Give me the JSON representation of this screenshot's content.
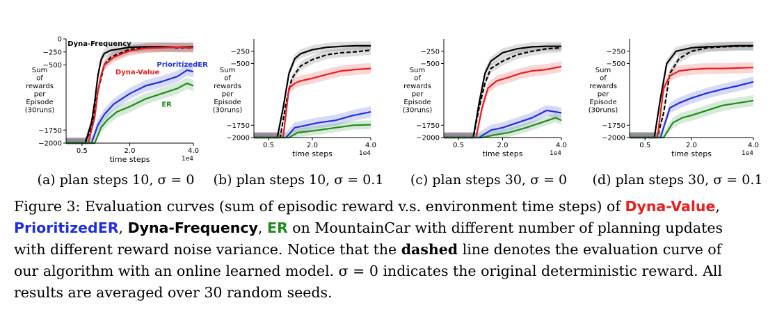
{
  "chart_data": [
    {
      "type": "line",
      "subcaption": "(a) plan steps 10, σ = 0",
      "xlabel": "time steps",
      "x_exponent": "1e4",
      "ylabel": [
        "Sum",
        "of",
        "rewards",
        "per",
        "Episode",
        "(30runs)"
      ],
      "xlim": [
        0,
        4.0
      ],
      "ylim": [
        -2000,
        0
      ],
      "xticks": [
        {
          "v": 0.5,
          "label": "0.5"
        },
        {
          "v": 2.0,
          "label": "2.0"
        },
        {
          "v": 4.0,
          "label": "4.0"
        }
      ],
      "yticks": [
        {
          "v": 0,
          "label": "0"
        },
        {
          "v": -250,
          "label": "−250"
        },
        {
          "v": -500,
          "label": "−500"
        },
        {
          "v": -1750,
          "label": "−1750"
        },
        {
          "v": -2000,
          "label": "−2000"
        }
      ],
      "series": [
        {
          "name": "Dyna-Frequency",
          "color": "#000000",
          "dashed": false,
          "band": 90,
          "x": [
            0,
            0.6,
            0.8,
            0.9,
            1.0,
            1.1,
            1.2,
            1.4,
            1.6,
            1.8,
            2.0,
            2.5,
            3.0,
            3.5,
            4.0
          ],
          "y": [
            -2000,
            -2000,
            -1600,
            -1200,
            -700,
            -400,
            -280,
            -220,
            -200,
            -180,
            -160,
            -150,
            -150,
            -160,
            -150
          ]
        },
        {
          "name": "",
          "color": "#000000",
          "dashed": true,
          "band": 90,
          "x": [
            0,
            0.6,
            0.8,
            1.0,
            1.2,
            1.4,
            1.6,
            1.8,
            2.0,
            2.5,
            3.0,
            3.5,
            4.0
          ],
          "y": [
            -2000,
            -2000,
            -1700,
            -1000,
            -500,
            -350,
            -300,
            -250,
            -200,
            -170,
            -160,
            -170,
            -170
          ]
        },
        {
          "name": "Dyna-Value",
          "color": "#ee1c1c",
          "dashed": false,
          "band": 90,
          "x": [
            0,
            0.7,
            0.9,
            1.0,
            1.1,
            1.2,
            1.3,
            1.5,
            1.7,
            2.0,
            2.5,
            3.0,
            3.5,
            4.0
          ],
          "y": [
            -2000,
            -2000,
            -1500,
            -1000,
            -700,
            -500,
            -450,
            -350,
            -300,
            -230,
            -180,
            -170,
            -160,
            -170
          ]
        },
        {
          "name": "PrioritizedER",
          "color": "#1f2fe0",
          "dashed": false,
          "band": 110,
          "x": [
            0,
            0.8,
            1.0,
            1.2,
            1.5,
            2.0,
            2.5,
            3.0,
            3.5,
            3.8,
            4.0
          ],
          "y": [
            -2000,
            -2000,
            -1650,
            -1450,
            -1250,
            -1050,
            -900,
            -820,
            -720,
            -600,
            -630
          ]
        },
        {
          "name": "ER",
          "color": "#1f8a1f",
          "dashed": false,
          "band": 110,
          "x": [
            0,
            0.9,
            1.1,
            1.3,
            1.6,
            2.0,
            2.5,
            3.0,
            3.5,
            3.8,
            4.0
          ],
          "y": [
            -2000,
            -2000,
            -1700,
            -1550,
            -1400,
            -1300,
            -1150,
            -1050,
            -950,
            -850,
            -900
          ]
        }
      ],
      "annotations": [
        {
          "text": "Dyna-Frequency",
          "color": "#000000",
          "x": 0.05,
          "y": -130
        },
        {
          "text": "PrioritizedER",
          "color": "#1f2fe0",
          "x": 2.85,
          "y": -530
        },
        {
          "text": "Dyna-Value",
          "color": "#ee1c1c",
          "x": 1.55,
          "y": -680
        },
        {
          "text": "ER",
          "color": "#1f8a1f",
          "x": 3.0,
          "y": -1300
        }
      ]
    },
    {
      "type": "line",
      "subcaption": "(b) plan steps 10, σ = 0.1",
      "xlabel": "time steps",
      "x_exponent": "1e4",
      "ylabel": [
        "Sum",
        "of",
        "rewards",
        "per",
        "Episode",
        "(30runs)"
      ],
      "xlim": [
        0,
        4.0
      ],
      "ylim": [
        -2000,
        0
      ],
      "xticks": [
        {
          "v": 0.5,
          "label": "0.5"
        },
        {
          "v": 2.0,
          "label": "2.0"
        },
        {
          "v": 4.0,
          "label": "4.0"
        }
      ],
      "yticks": [
        {
          "v": -250,
          "label": "−250"
        },
        {
          "v": -500,
          "label": "−500"
        },
        {
          "v": -1750,
          "label": "−1750"
        },
        {
          "v": -2000,
          "label": "−2000"
        }
      ],
      "series": [
        {
          "name": "Dyna-Frequency",
          "color": "#000000",
          "dashed": false,
          "band": 90,
          "x": [
            0,
            0.8,
            1.0,
            1.2,
            1.4,
            1.6,
            2.0,
            2.5,
            3.0,
            3.5,
            4.0
          ],
          "y": [
            -2000,
            -2000,
            -1400,
            -700,
            -400,
            -300,
            -220,
            -170,
            -150,
            -140,
            -140
          ]
        },
        {
          "name": "",
          "color": "#000000",
          "dashed": true,
          "band": 90,
          "x": [
            0,
            0.9,
            1.1,
            1.3,
            1.6,
            2.0,
            2.5,
            3.0,
            3.5,
            4.0
          ],
          "y": [
            -2000,
            -2000,
            -1300,
            -800,
            -550,
            -420,
            -320,
            -280,
            -260,
            -230
          ]
        },
        {
          "name": "Dyna-Value",
          "color": "#ee1c1c",
          "dashed": false,
          "band": 110,
          "x": [
            0,
            1.0,
            1.2,
            1.4,
            1.6,
            2.0,
            2.5,
            3.0,
            3.5,
            4.0
          ],
          "y": [
            -2000,
            -2000,
            -1000,
            -900,
            -850,
            -800,
            -720,
            -650,
            -620,
            -600
          ]
        },
        {
          "name": "PrioritizedER",
          "color": "#1f2fe0",
          "dashed": false,
          "band": 110,
          "x": [
            0,
            1.1,
            1.4,
            1.8,
            2.2,
            2.8,
            3.4,
            4.0
          ],
          "y": [
            -2000,
            -2000,
            -1800,
            -1750,
            -1700,
            -1650,
            -1550,
            -1480
          ]
        },
        {
          "name": "ER",
          "color": "#1f8a1f",
          "dashed": false,
          "band": 90,
          "x": [
            0,
            1.2,
            1.5,
            1.8,
            2.2,
            2.8,
            3.4,
            4.0
          ],
          "y": [
            -2000,
            -2000,
            -1900,
            -1880,
            -1850,
            -1800,
            -1750,
            -1740
          ]
        }
      ],
      "annotations": []
    },
    {
      "type": "line",
      "subcaption": "(c) plan steps 30, σ = 0",
      "xlabel": "time steps",
      "x_exponent": "1e4",
      "ylabel": [
        "Sum",
        "of",
        "rewards",
        "per",
        "Episode",
        "(30runs)"
      ],
      "xlim": [
        0,
        4.0
      ],
      "ylim": [
        -2000,
        0
      ],
      "xticks": [
        {
          "v": 0.5,
          "label": "0.5"
        },
        {
          "v": 2.0,
          "label": "2.0"
        },
        {
          "v": 4.0,
          "label": "4.0"
        }
      ],
      "yticks": [
        {
          "v": -250,
          "label": "−250"
        },
        {
          "v": -500,
          "label": "−500"
        },
        {
          "v": -1750,
          "label": "−1750"
        },
        {
          "v": -2000,
          "label": "−2000"
        }
      ],
      "series": [
        {
          "name": "Dyna-Frequency",
          "color": "#000000",
          "dashed": false,
          "band": 90,
          "x": [
            0,
            1.0,
            1.2,
            1.4,
            1.6,
            2.0,
            2.5,
            3.0,
            3.5,
            4.0
          ],
          "y": [
            -2000,
            -2000,
            -1300,
            -700,
            -450,
            -280,
            -200,
            -160,
            -150,
            -150
          ]
        },
        {
          "name": "",
          "color": "#000000",
          "dashed": true,
          "band": 90,
          "x": [
            0,
            1.0,
            1.2,
            1.4,
            1.6,
            2.0,
            2.5,
            3.0,
            3.5,
            4.0
          ],
          "y": [
            -2000,
            -2000,
            -1400,
            -900,
            -600,
            -450,
            -320,
            -250,
            -200,
            -180
          ]
        },
        {
          "name": "Dyna-Value",
          "color": "#ee1c1c",
          "dashed": false,
          "band": 110,
          "x": [
            0,
            1.1,
            1.3,
            1.5,
            1.8,
            2.2,
            2.6,
            3.0,
            3.5,
            4.0
          ],
          "y": [
            -2000,
            -2000,
            -1400,
            -1000,
            -850,
            -780,
            -700,
            -650,
            -620,
            -560
          ]
        },
        {
          "name": "PrioritizedER",
          "color": "#1f2fe0",
          "dashed": false,
          "band": 110,
          "x": [
            0,
            1.2,
            1.6,
            2.0,
            2.5,
            3.0,
            3.5,
            4.0
          ],
          "y": [
            -2000,
            -2000,
            -1850,
            -1800,
            -1700,
            -1600,
            -1450,
            -1500
          ]
        },
        {
          "name": "ER",
          "color": "#1f8a1f",
          "dashed": false,
          "band": 90,
          "x": [
            0,
            1.3,
            1.7,
            2.2,
            2.8,
            3.3,
            3.8,
            4.0
          ],
          "y": [
            -2000,
            -2000,
            -1950,
            -1900,
            -1800,
            -1700,
            -1600,
            -1650
          ]
        }
      ],
      "annotations": []
    },
    {
      "type": "line",
      "subcaption": "(d) plan steps 30, σ = 0.1",
      "xlabel": "time steps",
      "x_exponent": "1e4",
      "ylabel": [
        "Sum",
        "of",
        "rewards",
        "per",
        "Episode",
        "(30runs)"
      ],
      "xlim": [
        0,
        4.0
      ],
      "ylim": [
        -2000,
        0
      ],
      "xticks": [
        {
          "v": 0.5,
          "label": "0.5"
        },
        {
          "v": 2.0,
          "label": "2.0"
        },
        {
          "v": 4.0,
          "label": "4.0"
        }
      ],
      "yticks": [
        {
          "v": -250,
          "label": "−250"
        },
        {
          "v": -500,
          "label": "−500"
        },
        {
          "v": -1750,
          "label": "−1750"
        },
        {
          "v": -2000,
          "label": "−2000"
        }
      ],
      "series": [
        {
          "name": "Dyna-Frequency",
          "color": "#000000",
          "dashed": false,
          "band": 90,
          "x": [
            0,
            0.8,
            1.0,
            1.2,
            1.5,
            2.0,
            2.5,
            3.0,
            3.5,
            4.0
          ],
          "y": [
            -2000,
            -2000,
            -1200,
            -500,
            -250,
            -180,
            -160,
            -150,
            -140,
            -140
          ]
        },
        {
          "name": "",
          "color": "#000000",
          "dashed": true,
          "band": 90,
          "x": [
            0,
            0.9,
            1.1,
            1.3,
            1.6,
            2.0,
            2.5,
            3.0,
            3.5,
            4.0
          ],
          "y": [
            -2000,
            -2000,
            -1500,
            -700,
            -400,
            -250,
            -180,
            -160,
            -150,
            -150
          ]
        },
        {
          "name": "Dyna-Value",
          "color": "#ee1c1c",
          "dashed": false,
          "band": 110,
          "x": [
            0,
            0.9,
            1.1,
            1.3,
            1.6,
            2.0,
            2.5,
            3.0,
            3.5,
            4.0
          ],
          "y": [
            -2000,
            -2000,
            -1000,
            -750,
            -650,
            -620,
            -600,
            -600,
            -590,
            -580
          ]
        },
        {
          "name": "PrioritizedER",
          "color": "#1f2fe0",
          "dashed": false,
          "band": 110,
          "x": [
            0,
            1.0,
            1.3,
            1.6,
            2.0,
            2.5,
            3.0,
            3.5,
            4.0
          ],
          "y": [
            -2000,
            -2000,
            -1400,
            -1300,
            -1200,
            -1100,
            -1020,
            -950,
            -870
          ]
        },
        {
          "name": "ER",
          "color": "#1f8a1f",
          "dashed": false,
          "band": 110,
          "x": [
            0,
            1.1,
            1.4,
            1.7,
            2.0,
            2.5,
            3.0,
            3.5,
            4.0
          ],
          "y": [
            -2000,
            -2000,
            -1700,
            -1600,
            -1550,
            -1450,
            -1350,
            -1300,
            -1250
          ]
        }
      ],
      "annotations": []
    }
  ],
  "caption": {
    "figure_label": "Figure 3:",
    "line1_pre": "Evaluation curves (sum of episodic reward v.s. environment time steps) of",
    "name_dyna_value": "Dyna-Value",
    "line1_post": ",",
    "name_prioritized_er": "PrioritizedER",
    "sep1": ",",
    "name_dyna_frequency": "Dyna-Frequency",
    "sep2": ",",
    "name_er": "ER",
    "line2_post": "on MountainCar with different number of planning updates",
    "line3_pre": "with different reward noise variance.  Notice that the",
    "dashed_word": "dashed",
    "line3_post": "line denotes the evaluation curve of",
    "line4": "our algorithm with an online learned model.  σ = 0 indicates the original deterministic reward.  All",
    "line5": "results are averaged over 30 random seeds."
  }
}
